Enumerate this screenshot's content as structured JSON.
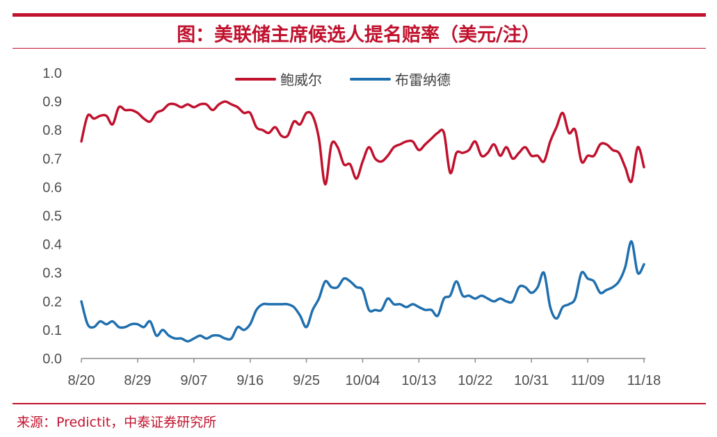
{
  "title": "图：美联储主席候选人提名赔率（美元/注）",
  "source": "来源：Predictit，中泰证券研究所",
  "colors": {
    "accent": "#c0112d",
    "powell": "#c0112d",
    "brainard": "#1f6fae"
  },
  "chart_data": {
    "type": "line",
    "title": "图：美联储主席候选人提名赔率（美元/注）",
    "xlabel": "",
    "ylabel": "",
    "ylim": [
      0.0,
      1.0
    ],
    "yticks": [
      "0.0",
      "0.1",
      "0.2",
      "0.3",
      "0.4",
      "0.5",
      "0.6",
      "0.7",
      "0.8",
      "0.9",
      "1.0"
    ],
    "x_ticks": [
      {
        "day": 0,
        "label": "8/20"
      },
      {
        "day": 9,
        "label": "8/29"
      },
      {
        "day": 18,
        "label": "9/07"
      },
      {
        "day": 27,
        "label": "9/16"
      },
      {
        "day": 36,
        "label": "9/25"
      },
      {
        "day": 45,
        "label": "10/04"
      },
      {
        "day": 54,
        "label": "10/13"
      },
      {
        "day": 63,
        "label": "10/22"
      },
      {
        "day": 72,
        "label": "10/31"
      },
      {
        "day": 81,
        "label": "11/09"
      },
      {
        "day": 90,
        "label": "11/18"
      }
    ],
    "x_range": [
      0,
      90
    ],
    "grid": false,
    "legend": "top-center",
    "series": [
      {
        "name": "鲍威尔",
        "color": "#c0112d",
        "points": [
          [
            0,
            0.76
          ],
          [
            1,
            0.85
          ],
          [
            2,
            0.84
          ],
          [
            3,
            0.85
          ],
          [
            4,
            0.85
          ],
          [
            5,
            0.82
          ],
          [
            6,
            0.88
          ],
          [
            7,
            0.87
          ],
          [
            8,
            0.87
          ],
          [
            9,
            0.86
          ],
          [
            10,
            0.84
          ],
          [
            11,
            0.83
          ],
          [
            12,
            0.86
          ],
          [
            13,
            0.87
          ],
          [
            14,
            0.89
          ],
          [
            15,
            0.89
          ],
          [
            16,
            0.88
          ],
          [
            17,
            0.89
          ],
          [
            18,
            0.88
          ],
          [
            19,
            0.89
          ],
          [
            20,
            0.89
          ],
          [
            21,
            0.87
          ],
          [
            22,
            0.89
          ],
          [
            23,
            0.9
          ],
          [
            24,
            0.89
          ],
          [
            25,
            0.88
          ],
          [
            26,
            0.86
          ],
          [
            27,
            0.86
          ],
          [
            28,
            0.81
          ],
          [
            29,
            0.8
          ],
          [
            30,
            0.79
          ],
          [
            31,
            0.81
          ],
          [
            32,
            0.78
          ],
          [
            33,
            0.78
          ],
          [
            34,
            0.83
          ],
          [
            35,
            0.82
          ],
          [
            36,
            0.86
          ],
          [
            37,
            0.85
          ],
          [
            38,
            0.77
          ],
          [
            39,
            0.61
          ],
          [
            40,
            0.75
          ],
          [
            41,
            0.74
          ],
          [
            42,
            0.68
          ],
          [
            43,
            0.68
          ],
          [
            44,
            0.63
          ],
          [
            45,
            0.69
          ],
          [
            46,
            0.74
          ],
          [
            47,
            0.7
          ],
          [
            48,
            0.69
          ],
          [
            49,
            0.71
          ],
          [
            50,
            0.74
          ],
          [
            51,
            0.75
          ],
          [
            52,
            0.76
          ],
          [
            53,
            0.76
          ],
          [
            54,
            0.73
          ],
          [
            55,
            0.75
          ],
          [
            56,
            0.77
          ],
          [
            57,
            0.79
          ],
          [
            58,
            0.79
          ],
          [
            59,
            0.65
          ],
          [
            60,
            0.72
          ],
          [
            61,
            0.72
          ],
          [
            62,
            0.73
          ],
          [
            63,
            0.76
          ],
          [
            64,
            0.71
          ],
          [
            65,
            0.72
          ],
          [
            66,
            0.75
          ],
          [
            67,
            0.71
          ],
          [
            68,
            0.74
          ],
          [
            69,
            0.7
          ],
          [
            70,
            0.72
          ],
          [
            71,
            0.74
          ],
          [
            72,
            0.71
          ],
          [
            73,
            0.71
          ],
          [
            74,
            0.69
          ],
          [
            75,
            0.76
          ],
          [
            76,
            0.81
          ],
          [
            77,
            0.86
          ],
          [
            78,
            0.79
          ],
          [
            79,
            0.8
          ],
          [
            80,
            0.69
          ],
          [
            81,
            0.71
          ],
          [
            82,
            0.71
          ],
          [
            83,
            0.75
          ],
          [
            84,
            0.75
          ],
          [
            85,
            0.73
          ],
          [
            86,
            0.72
          ],
          [
            87,
            0.67
          ],
          [
            88,
            0.62
          ],
          [
            89,
            0.74
          ],
          [
            90,
            0.67
          ]
        ]
      },
      {
        "name": "布雷纳德",
        "color": "#1f6fae",
        "points": [
          [
            0,
            0.2
          ],
          [
            1,
            0.12
          ],
          [
            2,
            0.11
          ],
          [
            3,
            0.13
          ],
          [
            4,
            0.12
          ],
          [
            5,
            0.13
          ],
          [
            6,
            0.11
          ],
          [
            7,
            0.11
          ],
          [
            8,
            0.12
          ],
          [
            9,
            0.12
          ],
          [
            10,
            0.11
          ],
          [
            11,
            0.13
          ],
          [
            12,
            0.08
          ],
          [
            13,
            0.1
          ],
          [
            14,
            0.08
          ],
          [
            15,
            0.07
          ],
          [
            16,
            0.07
          ],
          [
            17,
            0.06
          ],
          [
            18,
            0.07
          ],
          [
            19,
            0.08
          ],
          [
            20,
            0.07
          ],
          [
            21,
            0.08
          ],
          [
            22,
            0.08
          ],
          [
            23,
            0.07
          ],
          [
            24,
            0.07
          ],
          [
            25,
            0.11
          ],
          [
            26,
            0.1
          ],
          [
            27,
            0.12
          ],
          [
            28,
            0.17
          ],
          [
            29,
            0.19
          ],
          [
            30,
            0.19
          ],
          [
            31,
            0.19
          ],
          [
            32,
            0.19
          ],
          [
            33,
            0.19
          ],
          [
            34,
            0.18
          ],
          [
            35,
            0.15
          ],
          [
            36,
            0.11
          ],
          [
            37,
            0.17
          ],
          [
            38,
            0.21
          ],
          [
            39,
            0.27
          ],
          [
            40,
            0.25
          ],
          [
            41,
            0.25
          ],
          [
            42,
            0.28
          ],
          [
            43,
            0.27
          ],
          [
            44,
            0.25
          ],
          [
            45,
            0.24
          ],
          [
            46,
            0.17
          ],
          [
            47,
            0.17
          ],
          [
            48,
            0.17
          ],
          [
            49,
            0.21
          ],
          [
            50,
            0.19
          ],
          [
            51,
            0.19
          ],
          [
            52,
            0.18
          ],
          [
            53,
            0.19
          ],
          [
            54,
            0.18
          ],
          [
            55,
            0.17
          ],
          [
            56,
            0.17
          ],
          [
            57,
            0.15
          ],
          [
            58,
            0.21
          ],
          [
            59,
            0.22
          ],
          [
            60,
            0.27
          ],
          [
            61,
            0.22
          ],
          [
            62,
            0.22
          ],
          [
            63,
            0.21
          ],
          [
            64,
            0.22
          ],
          [
            65,
            0.21
          ],
          [
            66,
            0.2
          ],
          [
            67,
            0.21
          ],
          [
            68,
            0.2
          ],
          [
            69,
            0.2
          ],
          [
            70,
            0.25
          ],
          [
            71,
            0.25
          ],
          [
            72,
            0.23
          ],
          [
            73,
            0.25
          ],
          [
            74,
            0.3
          ],
          [
            75,
            0.18
          ],
          [
            76,
            0.14
          ],
          [
            77,
            0.18
          ],
          [
            78,
            0.19
          ],
          [
            79,
            0.21
          ],
          [
            80,
            0.3
          ],
          [
            81,
            0.28
          ],
          [
            82,
            0.27
          ],
          [
            83,
            0.23
          ],
          [
            84,
            0.24
          ],
          [
            85,
            0.25
          ],
          [
            86,
            0.27
          ],
          [
            87,
            0.32
          ],
          [
            88,
            0.41
          ],
          [
            89,
            0.3
          ],
          [
            90,
            0.33
          ]
        ]
      }
    ]
  }
}
